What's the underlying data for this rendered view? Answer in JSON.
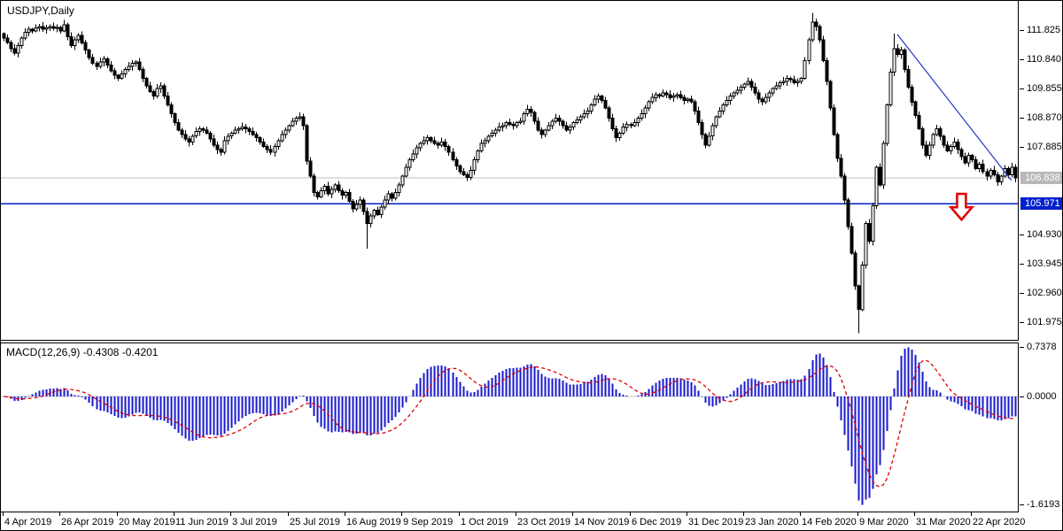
{
  "window": {
    "symbol_label": "USDJPY,Daily"
  },
  "price_axis": {
    "ticks": [
      {
        "label": "111.825",
        "value": 111.825
      },
      {
        "label": "110.840",
        "value": 110.84
      },
      {
        "label": "109.855",
        "value": 109.855
      },
      {
        "label": "108.870",
        "value": 108.87
      },
      {
        "label": "107.885",
        "value": 107.885
      },
      {
        "label": "104.930",
        "value": 104.93
      },
      {
        "label": "103.945",
        "value": 103.945
      },
      {
        "label": "102.960",
        "value": 102.96
      },
      {
        "label": "101.975",
        "value": 101.975
      }
    ],
    "current_price_marker": {
      "label": "106.838",
      "value": 106.838,
      "bg": "#b8b8b8",
      "fg": "#ffffff"
    },
    "level_marker": {
      "label": "105.971",
      "value": 105.971,
      "bg": "#0020cc",
      "fg": "#ffffff"
    }
  },
  "time_axis": {
    "candles_per_tick": 16,
    "labels": [
      "4 Apr 2019",
      "26 Apr 2019",
      "20 May 2019",
      "11 Jun 2019",
      "3 Jul 2019",
      "25 Jul 2019",
      "16 Aug 2019",
      "9 Sep 2019",
      "1 Oct 2019",
      "23 Oct 2019",
      "14 Nov 2019",
      "6 Dec 2019",
      "31 Dec 2019",
      "23 Jan 2020",
      "14 Feb 2020",
      "9 Mar 2020",
      "31 Mar 2020",
      "22 Apr 2020"
    ]
  },
  "macd_panel": {
    "label": "MACD(12,26,9)",
    "value_main": "-0.4308",
    "value_signal": "-0.4201",
    "axis": [
      {
        "label": "0.7378",
        "value": 0.7378
      },
      {
        "label": "0.0000",
        "value": 0.0
      },
      {
        "label": "-1.6193",
        "value": -1.6193
      }
    ],
    "histogram_color": "#1a1acc",
    "signal_color": "#e00000",
    "zero_line_color": "#c8c8c8"
  },
  "chart_data": {
    "type": "candlestick",
    "symbol": "USDJPY",
    "timeframe": "Daily",
    "x_range": [
      "4 Apr 2019",
      "22 Apr 2020"
    ],
    "y_range": [
      101.41,
      112.66
    ],
    "grid": false,
    "open_first": 111.7,
    "closes": [
      111.55,
      111.4,
      111.2,
      111.05,
      111.3,
      111.55,
      111.75,
      111.85,
      111.8,
      111.9,
      111.95,
      111.85,
      111.9,
      111.95,
      111.88,
      111.92,
      111.8,
      112.0,
      111.6,
      111.3,
      111.5,
      111.65,
      111.4,
      111.15,
      110.9,
      110.7,
      110.6,
      110.75,
      110.85,
      110.65,
      110.45,
      110.3,
      110.2,
      110.35,
      110.5,
      110.6,
      110.7,
      110.75,
      110.5,
      110.2,
      109.95,
      109.75,
      109.6,
      109.85,
      109.95,
      109.6,
      109.3,
      109.0,
      108.7,
      108.45,
      108.3,
      108.15,
      108.05,
      108.25,
      108.4,
      108.5,
      108.45,
      108.35,
      108.15,
      107.95,
      107.8,
      107.7,
      108.1,
      108.25,
      108.35,
      108.45,
      108.5,
      108.55,
      108.5,
      108.4,
      108.3,
      108.2,
      108.05,
      107.9,
      107.8,
      107.7,
      107.9,
      108.1,
      108.3,
      108.45,
      108.6,
      108.75,
      108.85,
      108.9,
      108.6,
      107.4,
      106.9,
      106.35,
      106.2,
      106.4,
      106.55,
      106.3,
      106.45,
      106.6,
      106.4,
      106.25,
      106.35,
      106.05,
      105.8,
      105.95,
      106.1,
      105.7,
      105.3,
      105.55,
      105.75,
      105.6,
      105.85,
      106.1,
      106.3,
      106.15,
      106.35,
      106.6,
      106.9,
      107.2,
      107.45,
      107.65,
      107.85,
      108.0,
      108.1,
      108.2,
      108.1,
      108.0,
      107.95,
      108.05,
      107.9,
      107.7,
      107.45,
      107.25,
      107.05,
      106.95,
      106.85,
      107.1,
      107.45,
      107.75,
      108.0,
      108.1,
      108.25,
      108.35,
      108.45,
      108.55,
      108.6,
      108.7,
      108.65,
      108.6,
      108.7,
      108.75,
      109.0,
      109.15,
      109.05,
      108.75,
      108.45,
      108.3,
      108.45,
      108.6,
      108.75,
      108.85,
      108.75,
      108.6,
      108.45,
      108.55,
      108.7,
      108.8,
      108.9,
      109.0,
      109.1,
      109.3,
      109.5,
      109.6,
      109.45,
      109.2,
      108.85,
      108.5,
      108.2,
      108.35,
      108.55,
      108.65,
      108.6,
      108.7,
      108.85,
      109.0,
      109.2,
      109.4,
      109.55,
      109.65,
      109.6,
      109.7,
      109.65,
      109.55,
      109.6,
      109.65,
      109.55,
      109.45,
      109.5,
      109.4,
      109.1,
      108.7,
      108.3,
      107.95,
      108.25,
      108.6,
      108.9,
      109.1,
      109.3,
      109.45,
      109.6,
      109.7,
      109.8,
      109.9,
      110.0,
      110.1,
      109.9,
      109.7,
      109.5,
      109.4,
      109.55,
      109.7,
      109.85,
      109.95,
      110.05,
      110.1,
      110.2,
      110.15,
      110.05,
      110.1,
      110.2,
      110.8,
      111.5,
      112.1,
      111.95,
      111.5,
      110.8,
      110.1,
      109.2,
      108.3,
      107.5,
      106.9,
      106.1,
      105.2,
      104.3,
      103.2,
      102.4,
      103.9,
      105.3,
      104.7,
      105.9,
      107.2,
      106.6,
      108.0,
      109.3,
      110.4,
      111.2,
      111.0,
      111.15,
      110.5,
      109.9,
      109.4,
      108.95,
      108.5,
      107.95,
      107.6,
      107.95,
      108.3,
      108.5,
      108.25,
      107.95,
      107.75,
      107.9,
      108.05,
      107.8,
      107.55,
      107.35,
      107.6,
      107.45,
      107.15,
      107.3,
      107.05,
      106.9,
      107.1,
      106.95,
      106.7,
      106.9,
      107.15,
      106.95,
      107.2,
      106.84
    ],
    "wick_overrides": [
      {
        "index": 17,
        "high": 112.17
      },
      {
        "index": 102,
        "low": 104.45
      },
      {
        "index": 227,
        "high": 112.4
      },
      {
        "index": 240,
        "low": 101.6
      },
      {
        "index": 250,
        "high": 111.7
      }
    ],
    "indicator": {
      "name": "MACD",
      "fast": 12,
      "slow": 26,
      "signal": 9
    }
  },
  "annotations": {
    "trendline": {
      "from_index": 251,
      "from_price": 111.68,
      "to_index": 283,
      "to_price": 106.76,
      "color": "#2836c8"
    },
    "level_line": {
      "price": 105.971,
      "color": "#0020cc"
    },
    "current_price_line": {
      "price": 106.838,
      "color": "#c0c0c0"
    },
    "down_arrow": {
      "index": 269,
      "top_price": 106.3,
      "tip_price": 105.43,
      "color": "#e00808"
    }
  },
  "colors": {
    "background": "#ffffff",
    "border": "#000000",
    "bull_body": "#ffffff",
    "bear_body": "#000000",
    "candle_outline": "#000000"
  }
}
